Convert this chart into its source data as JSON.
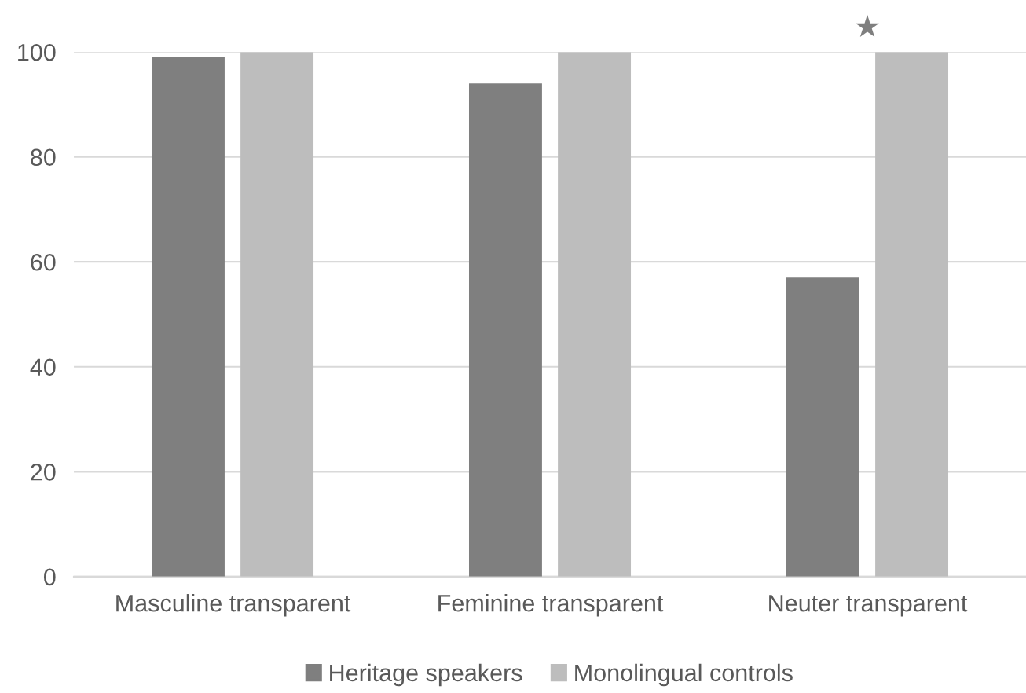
{
  "chart_data": {
    "type": "bar",
    "categories": [
      "Masculine transparent",
      "Feminine transparent",
      "Neuter transparent"
    ],
    "series": [
      {
        "name": "Heritage speakers",
        "color": "#7f7f7f",
        "values": [
          99,
          94,
          57
        ]
      },
      {
        "name": "Monolingual controls",
        "color": "#bdbdbd",
        "values": [
          100,
          100,
          100
        ]
      }
    ],
    "ylim": [
      0,
      100
    ],
    "yticks": [
      0,
      20,
      40,
      60,
      80,
      100
    ],
    "grid": "y",
    "legend": "bottom",
    "annotations": [
      "★"
    ]
  }
}
